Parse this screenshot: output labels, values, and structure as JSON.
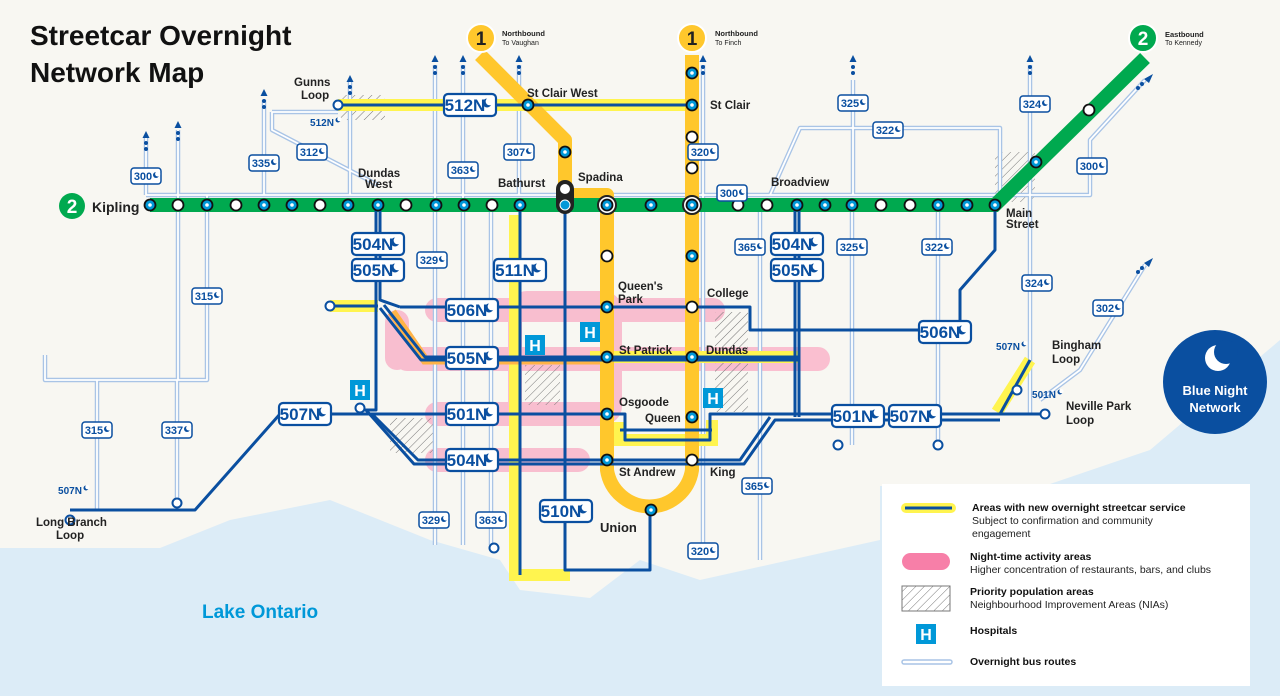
{
  "title": {
    "line1": "Streetcar Overnight",
    "line2": "Network Map"
  },
  "colors": {
    "background": "#f8f7f2",
    "water": "#dcecf7",
    "line1": "#ffc72c",
    "line2": "#00a94f",
    "streetcar": "#0a4fa0",
    "new_service": "#fff44f",
    "night_activity": "#f9b8cc",
    "bus": "#a9c4e6",
    "hospital": "#0098d8",
    "blue_night": "#0a4fa0"
  },
  "line1": {
    "badge": "1",
    "vaughan": {
      "direction": "Northbound",
      "destination": "To Vaughan"
    },
    "finch": {
      "direction": "Northbound",
      "destination": "To Finch"
    }
  },
  "line2": {
    "badge": "2",
    "west_terminal": "Kipling",
    "east": {
      "direction": "Eastbound",
      "destination": "To Kennedy"
    }
  },
  "stations": {
    "st_clair_west": "St Clair West",
    "st_clair": "St Clair",
    "spadina": "Spadina",
    "bathurst": "Bathurst",
    "broadview": "Broadview",
    "dundas_west_1": "Dundas",
    "dundas_west_2": "West",
    "gunns_1": "Gunns",
    "gunns_2": "Loop",
    "main_1": "Main",
    "main_2": "Street",
    "queens_park_1": "Queen's",
    "queens_park_2": "Park",
    "college": "College",
    "st_patrick": "St Patrick",
    "dundas": "Dundas",
    "osgoode": "Osgoode",
    "queen": "Queen",
    "st_andrew": "St Andrew",
    "king": "King",
    "union": "Union",
    "long_branch_1": "Long Branch",
    "long_branch_2": "Loop",
    "bingham_1": "Bingham",
    "bingham_2": "Loop",
    "neville_1": "Neville Park",
    "neville_2": "Loop"
  },
  "streetcar_routes": [
    "512N",
    "504N",
    "505N",
    "511N",
    "506N",
    "505N",
    "501N",
    "504N",
    "507N",
    "510N",
    "504N",
    "505N",
    "506N",
    "501N",
    "507N"
  ],
  "streetcar_small_labels": [
    "512N",
    "507N",
    "507N",
    "501N"
  ],
  "bus_routes": [
    "300",
    "335",
    "312",
    "363",
    "307",
    "320",
    "300",
    "325",
    "322",
    "324",
    "300",
    "365",
    "325",
    "322",
    "324",
    "302",
    "329",
    "315",
    "315",
    "337",
    "329",
    "363",
    "365",
    "320"
  ],
  "water_label": "Lake Ontario",
  "blue_night": {
    "line1": "Blue Night",
    "line2": "Network"
  },
  "legend": [
    {
      "icon": "new-service-line-icon",
      "title": "Areas with new overnight streetcar service",
      "sub": [
        "Subject to confirmation and community",
        "engagement"
      ]
    },
    {
      "icon": "night-activity-icon",
      "title": "Night-time activity areas",
      "sub": [
        "Higher concentration of restaurants, bars, and clubs"
      ]
    },
    {
      "icon": "hatched-area-icon",
      "title": "Priority population areas",
      "sub": [
        "Neighbourhood Improvement Areas (NIAs)"
      ]
    },
    {
      "icon": "hospital-icon",
      "title": "Hospitals",
      "hospital_letter": "H",
      "sub": []
    },
    {
      "icon": "bus-route-line-icon",
      "title": "Overnight bus routes",
      "sub": []
    }
  ]
}
